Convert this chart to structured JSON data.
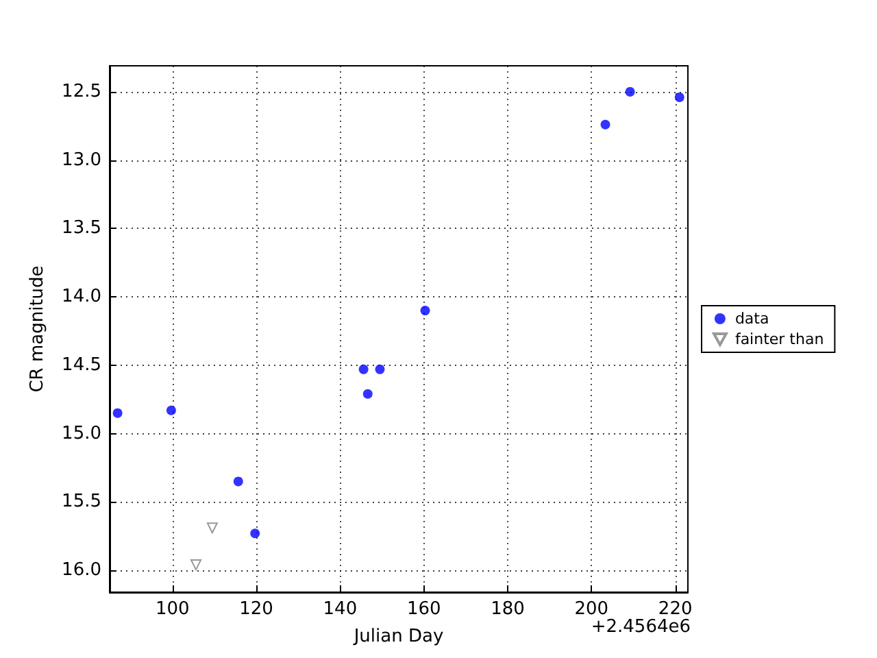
{
  "chart_data": {
    "type": "scatter",
    "xlabel": "Julian Day",
    "ylabel": "CR magnitude",
    "annotations": [
      "+2.4564e6"
    ],
    "xlim": [
      85,
      223
    ],
    "xticks": [
      100,
      120,
      140,
      160,
      180,
      200,
      220
    ],
    "ylim": [
      16.16,
      12.31
    ],
    "yticks": [
      12.5,
      {
        "value": 13,
        "label": "13.0"
      },
      13.5,
      {
        "value": 14,
        "label": "14.0"
      },
      14.5,
      {
        "value": 15,
        "label": "15.0"
      },
      15.5,
      {
        "value": 16,
        "label": "16.0"
      }
    ],
    "grid": true,
    "legend": "right",
    "series": [
      {
        "name": "data",
        "color": "#0000ff",
        "marker": "circle",
        "x": [
          86.9,
          99.7,
          115.7,
          119.7,
          145.6,
          146.6,
          149.5,
          160.3,
          203.3,
          209.2,
          221.0
        ],
        "values": [
          14.85,
          14.83,
          15.35,
          15.73,
          14.53,
          14.71,
          14.53,
          14.1,
          12.74,
          12.5,
          12.54
        ]
      },
      {
        "name": "fainter than",
        "color": "#808080",
        "marker": "triangle-down",
        "x": [
          105.6,
          109.5
        ],
        "values": [
          15.96,
          15.69
        ]
      }
    ]
  }
}
